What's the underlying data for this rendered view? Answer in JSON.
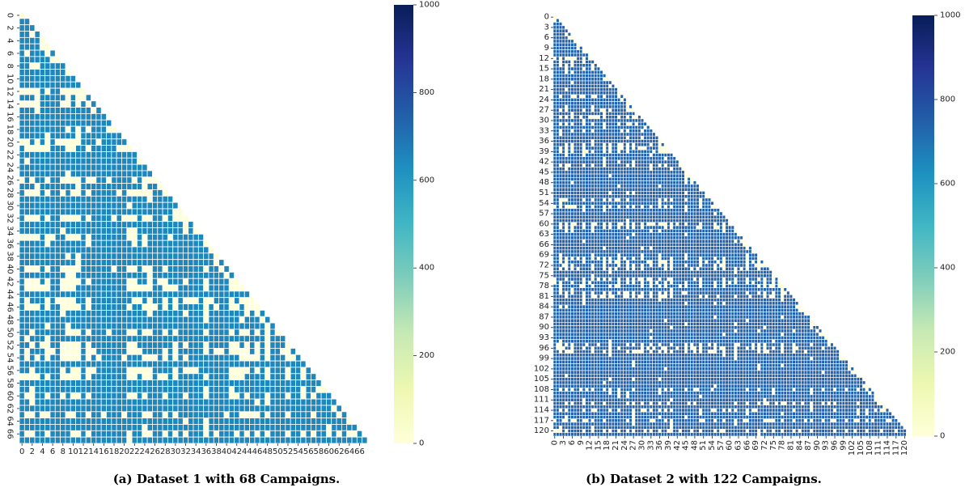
{
  "captions": {
    "a": "(a) Dataset 1 with 68 Campaigns.",
    "b": "(b) Dataset 2 with 122 Campaigns."
  },
  "chart_data": [
    {
      "type": "heatmap",
      "shape": "lower-triangular",
      "n": 68,
      "x_tick_labels": [
        "0",
        "2",
        "4",
        "6",
        "8",
        "10",
        "12",
        "14",
        "16",
        "18",
        "20",
        "22",
        "24",
        "26",
        "28",
        "30",
        "32",
        "34",
        "36",
        "38",
        "40",
        "42",
        "44",
        "46",
        "48",
        "50",
        "52",
        "54",
        "56",
        "58",
        "60",
        "62",
        "64",
        "66"
      ],
      "y_tick_labels": [
        "0",
        "2",
        "4",
        "6",
        "8",
        "10",
        "12",
        "14",
        "16",
        "18",
        "20",
        "22",
        "24",
        "26",
        "28",
        "30",
        "32",
        "34",
        "36",
        "38",
        "40",
        "42",
        "44",
        "46",
        "48",
        "50",
        "52",
        "54",
        "56",
        "58",
        "60",
        "62",
        "64",
        "66"
      ],
      "cell_value_dominant": 650,
      "cell_value_min": 0,
      "low_value_rows": [
        1,
        6,
        8,
        12,
        14,
        20,
        21,
        26,
        28,
        32,
        35,
        40,
        42,
        43,
        45,
        46,
        50,
        52,
        53,
        54,
        56,
        57,
        60,
        63,
        66
      ],
      "low_value_cols": [
        1,
        2,
        3,
        5,
        8,
        9,
        10,
        11,
        13,
        21,
        22,
        24,
        25,
        28,
        30,
        32,
        36,
        41,
        42,
        43,
        44,
        46,
        48,
        52,
        55,
        57,
        60,
        62
      ],
      "colorbar": {
        "min": 0,
        "max": 1000,
        "ticks": [
          "0",
          "200",
          "400",
          "600",
          "800",
          "1000"
        ],
        "colormap": "YlGnBu"
      }
    },
    {
      "type": "heatmap",
      "shape": "lower-triangular",
      "n": 122,
      "x_tick_labels": [
        "0",
        "3",
        "6",
        "9",
        "12",
        "15",
        "18",
        "21",
        "24",
        "27",
        "30",
        "33",
        "36",
        "39",
        "42",
        "45",
        "48",
        "51",
        "54",
        "57",
        "60",
        "63",
        "66",
        "69",
        "72",
        "75",
        "78",
        "81",
        "84",
        "87",
        "90",
        "93",
        "96",
        "99",
        "102",
        "105",
        "108",
        "111",
        "114",
        "117",
        "120"
      ],
      "y_tick_labels": [
        "0",
        "3",
        "6",
        "9",
        "12",
        "15",
        "18",
        "21",
        "24",
        "27",
        "30",
        "33",
        "36",
        "39",
        "42",
        "45",
        "48",
        "51",
        "54",
        "57",
        "60",
        "63",
        "66",
        "69",
        "72",
        "75",
        "78",
        "81",
        "84",
        "87",
        "90",
        "93",
        "96",
        "99",
        "102",
        "105",
        "108",
        "111",
        "114",
        "117",
        "120"
      ],
      "cell_value_dominant": 740,
      "cell_value_min": 0,
      "low_value_rows": [
        12,
        13,
        14,
        15,
        23,
        27,
        29,
        31,
        33,
        37,
        38,
        39,
        43,
        53,
        55,
        60,
        61,
        70,
        71,
        72,
        73,
        76,
        77,
        78,
        80,
        81,
        95,
        96,
        97,
        108,
        112,
        114,
        117,
        120
      ],
      "low_value_cols": [
        2,
        4,
        6,
        10,
        13,
        17,
        19,
        22,
        25,
        27,
        30,
        33,
        36,
        38,
        40,
        45,
        50,
        55,
        58,
        62,
        66,
        70,
        72,
        75,
        78,
        82,
        88,
        92,
        96,
        100,
        104,
        107,
        112
      ],
      "colorbar": {
        "min": 0,
        "max": 1000,
        "ticks": [
          "0",
          "200",
          "400",
          "600",
          "800",
          "1000"
        ],
        "colormap": "YlGnBu"
      }
    }
  ]
}
